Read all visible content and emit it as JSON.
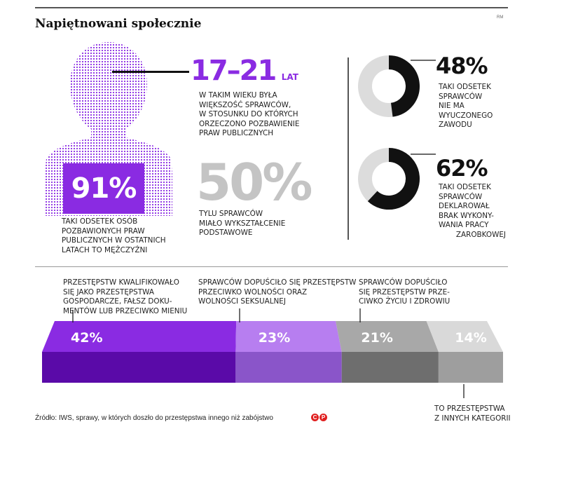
{
  "header": {
    "title": "Napiętnowani społecznie",
    "credit": "RM"
  },
  "age": {
    "value": "17–21",
    "unit": "LAT",
    "desc": [
      "W TAKIM WIEKU BYŁA",
      "WIĘKSZOŚĆ SPRAWCÓW,",
      "W STOSUNKU DO KTÓRYCH",
      "ORZECZONO POZBAWIENIE",
      "PRAW PUBLICZNYCH"
    ]
  },
  "men": {
    "value": "91%",
    "desc": [
      "TAKI ODSETEK OSÓB",
      "POZBAWIONYCH PRAW",
      "PUBLICZNYCH W OSTATNICH",
      "LATACH TO MĘŻCZYŹNI"
    ]
  },
  "education": {
    "value": "50%",
    "desc": [
      "TYLU SPRAWCÓW",
      "MIAŁO WYKSZTAŁCENIE",
      "PODSTAWOWE"
    ]
  },
  "donut1": {
    "value": "48%",
    "fraction": 0.48,
    "desc": [
      "TAKI ODSETEK",
      "SPRAWCÓW",
      "NIE MA",
      "WYUCZONEGO",
      "ZAWODU"
    ]
  },
  "donut2": {
    "value": "62%",
    "fraction": 0.62,
    "desc": [
      "TAKI ODSETEK",
      "SPRAWCÓW",
      "DEKLAROWAŁ",
      "BRAK WYKONY-",
      "WANIA PRACY",
      "ZAROBKOWEJ"
    ]
  },
  "chart_data": {
    "type": "bar",
    "categories": [
      "PRZESTĘPSTW KWALIFIKOWAŁO SIĘ JAKO PRZESTĘPSTWA GOSPODARCZE, FAŁSZ DOKUMENTÓW LUB PRZECIWKO MIENIU",
      "SPRAWCÓW DOPUŚCIŁO SIĘ PRZESTĘPSTW PRZECIWKO WOLNOŚCI ORAZ WOLNOŚCI SEKSUALNEJ",
      "SPRAWCÓW DOPUŚCIŁO SIĘ PRZESTĘPSTW PRZECIWKO ŻYCIU I ZDROWIU",
      "TO PRZESTĘPSTWA Z INNYCH KATEGORII"
    ],
    "values": [
      42,
      23,
      21,
      14
    ],
    "labels": [
      "42%",
      "23%",
      "21%",
      "14%"
    ],
    "colors_top": [
      "#8a2be2",
      "#b77ef0",
      "#a8a8a8",
      "#d9d9d9"
    ],
    "colors_front": [
      "#5a0aa8",
      "#8a55c9",
      "#6e6e6e",
      "#9e9e9e"
    ]
  },
  "bar_notes": [
    [
      "PRZESTĘPSTW KWALIFIKOWAŁO",
      "SIĘ JAKO PRZESTĘPSTWA",
      "GOSPODARCZE, FAŁSZ DOKU-",
      "MENTÓW LUB PRZECIWKO MIENIU"
    ],
    [
      "SPRAWCÓW DOPUŚCIŁO SIĘ PRZESTĘPSTW",
      "PRZECIWKO WOLNOŚCI ORAZ",
      "WOLNOŚCI SEKSUALNEJ"
    ],
    [
      "SPRAWCÓW DOPUŚCIŁO",
      "SIĘ PRZESTĘPSTW PRZE-",
      "CIWKO ŻYCIU I ZDROWIU"
    ],
    [
      "TO PRZESTĘPSTWA",
      "Z INNYCH KATEGORII"
    ]
  ],
  "source": "Źródło: IWS, sprawy, w których doszło do przestępstwa innego niż zabójstwo",
  "logo_text": [
    "C",
    "P"
  ]
}
